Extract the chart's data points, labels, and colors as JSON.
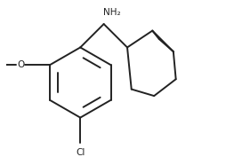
{
  "background": "#ffffff",
  "bond_color": "#222222",
  "bond_lw": 1.4,
  "text_color": "#222222",
  "nh2_label": "NH₂",
  "cl_label": "Cl",
  "o_label": "O",
  "figsize": [
    2.54,
    1.77
  ],
  "dpi": 100
}
